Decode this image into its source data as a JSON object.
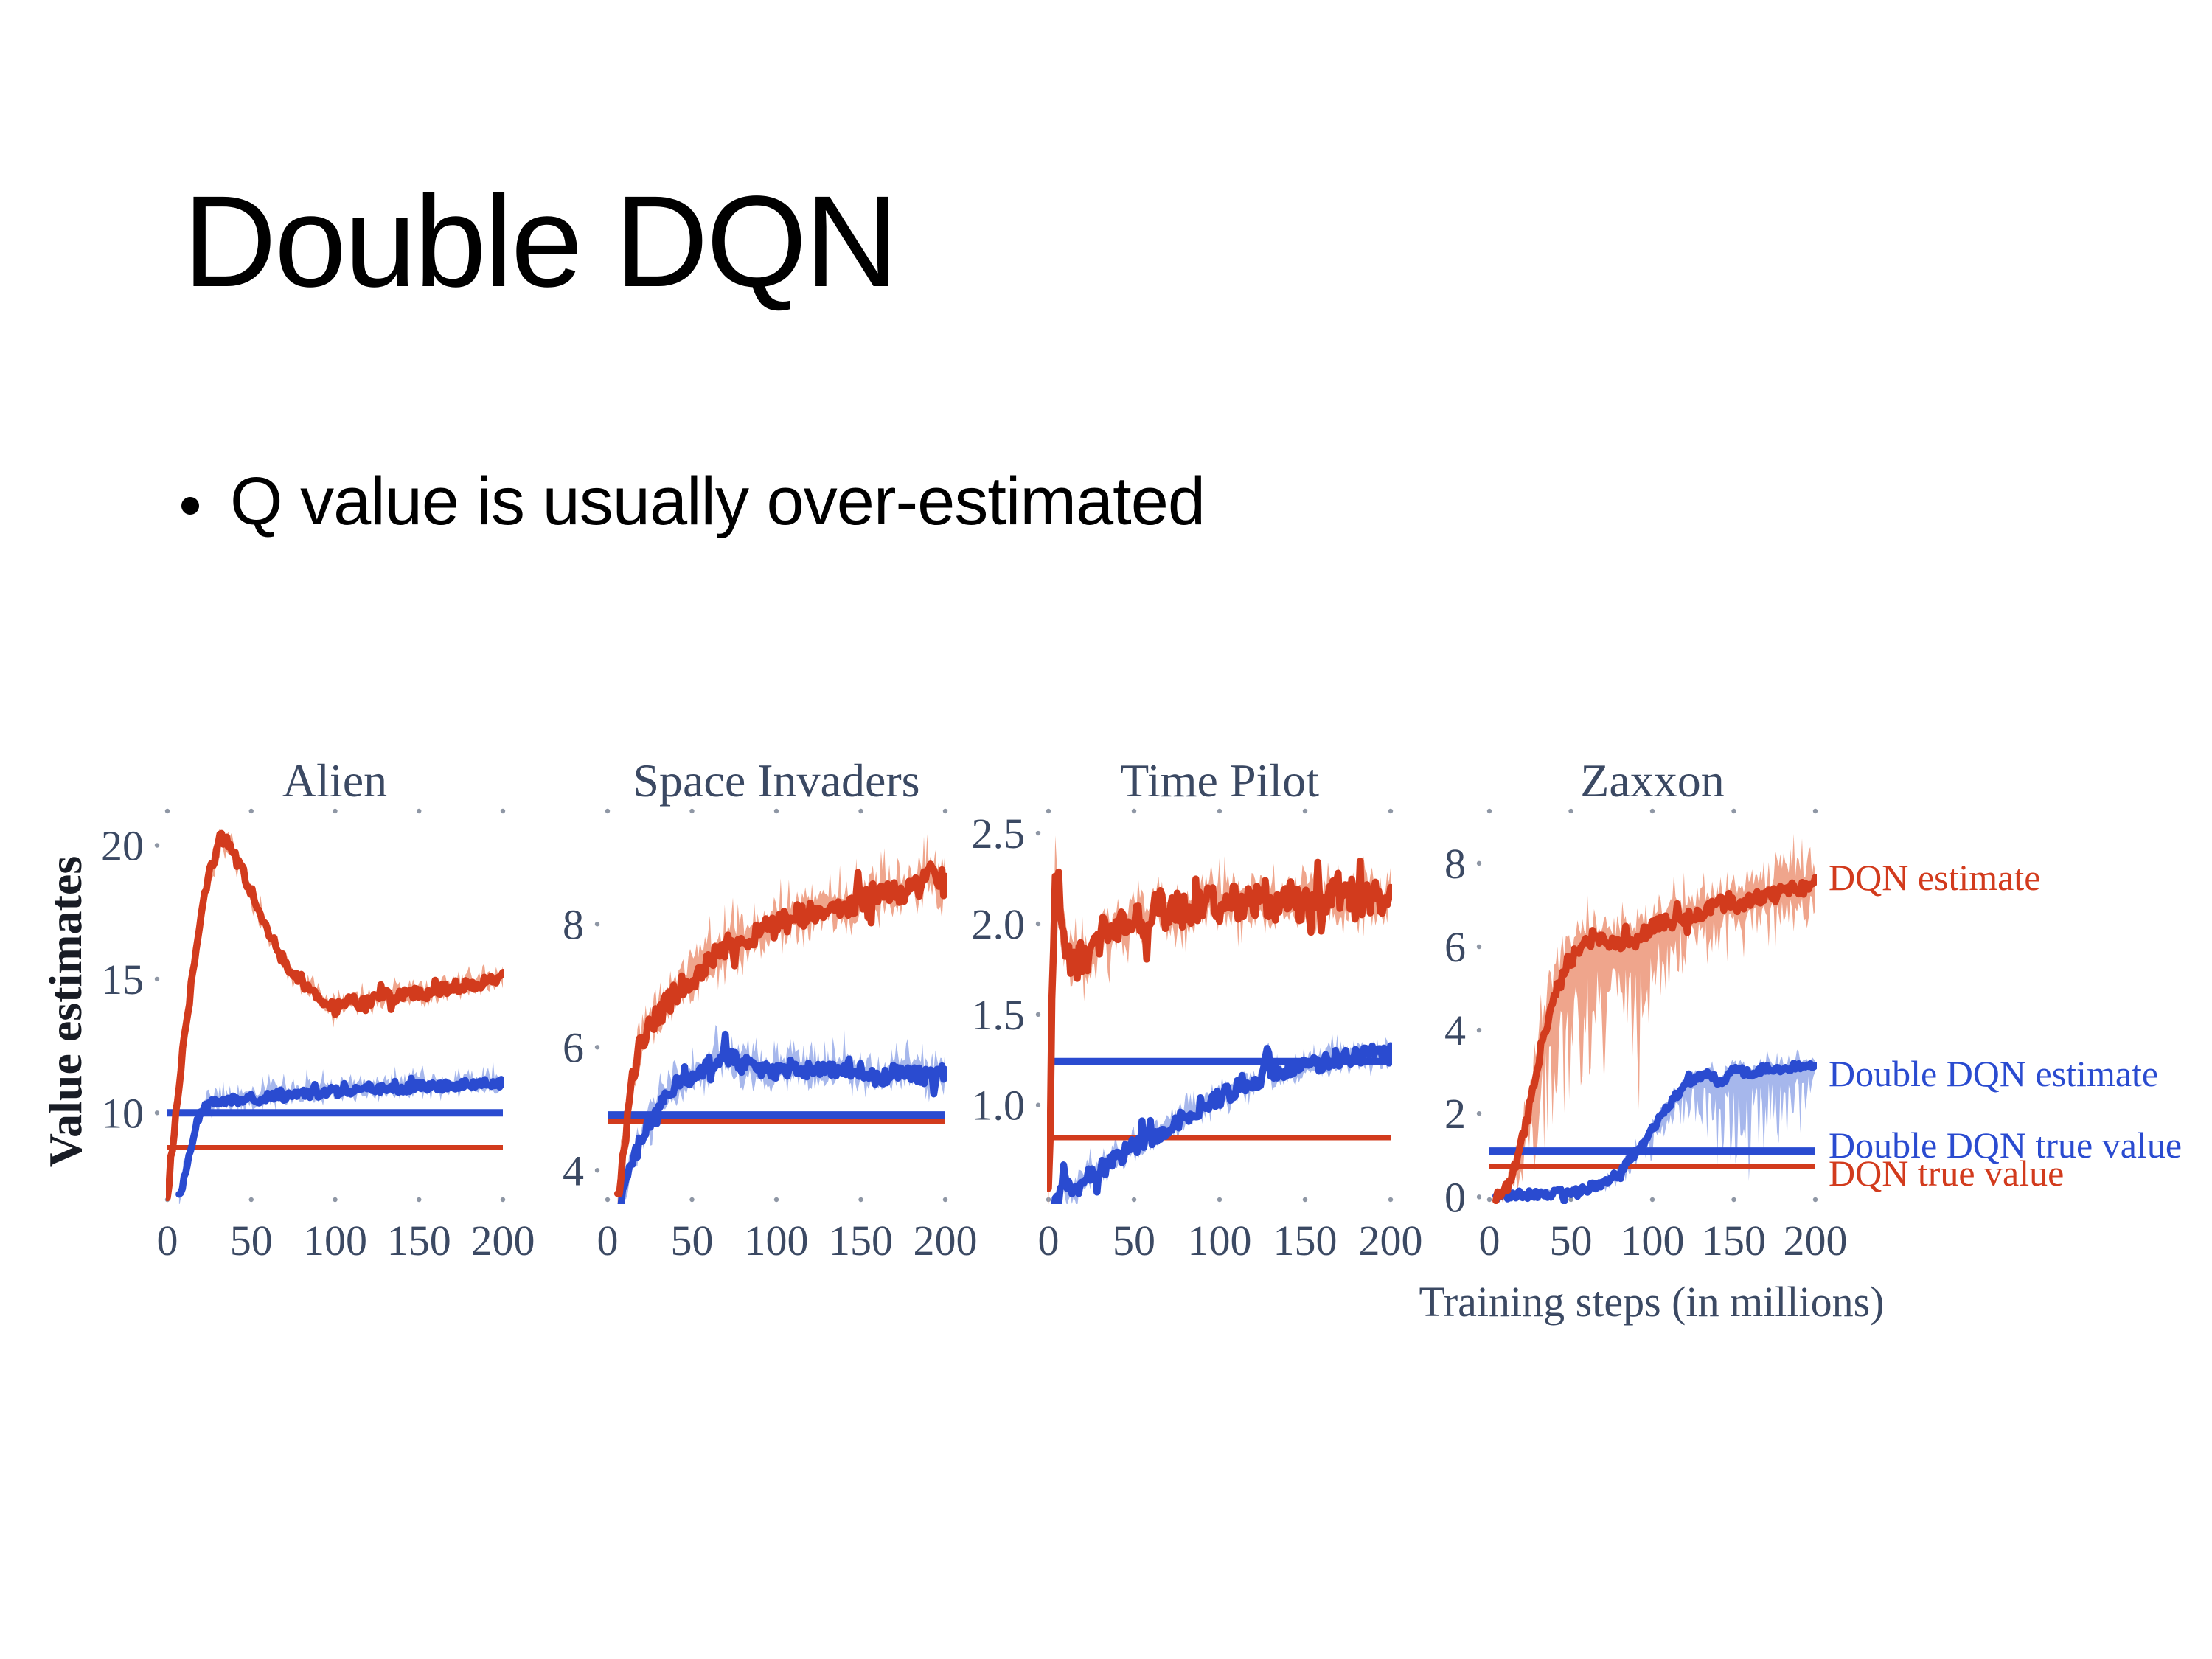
{
  "slide": {
    "title": "Double DQN",
    "bullet": "Q value is usually over-estimated"
  },
  "figure": {
    "y_axis_label": "Value estimates",
    "x_axis_label": "Training steps (in millions)",
    "colors": {
      "dqn": "#d23b1d",
      "dqn_band": "#efa58c",
      "ddqn": "#2a4bd0",
      "ddqn_band": "#a6b7ec",
      "axis_text": "#3b4963",
      "tick_dot": "#8f97a5",
      "ylabel_text": "#181c25"
    },
    "legend": [
      {
        "label": "DQN estimate",
        "color_key": "dqn"
      },
      {
        "label": "Double DQN estimate",
        "color_key": "ddqn"
      },
      {
        "label": "Double DQN true value",
        "color_key": "ddqn"
      },
      {
        "label": "DQN true value",
        "color_key": "dqn"
      }
    ]
  },
  "chart_data": [
    {
      "type": "line",
      "title": "Alien",
      "ylabel": "Value estimates",
      "xlim": [
        0,
        200
      ],
      "ylim": [
        6.7,
        21.2
      ],
      "yticks": [
        10,
        15,
        20
      ],
      "ytick_labels": [
        "10",
        "15",
        "20"
      ],
      "xticks": [
        0,
        50,
        100,
        150,
        200
      ],
      "xtick_labels": [
        "0",
        "50",
        "100",
        "150",
        "200"
      ],
      "series": [
        {
          "name": "DQN estimate",
          "kind": "curve",
          "color_key": "dqn",
          "band_key": "dqn_band",
          "noise": 0.22,
          "band_up": 0.55,
          "band_low": 0.5,
          "x": [
            0,
            3,
            6,
            9,
            12,
            15,
            18,
            21,
            25,
            28,
            32,
            36,
            40,
            45,
            50,
            55,
            60,
            65,
            70,
            75,
            80,
            85,
            90,
            95,
            100,
            105,
            110,
            115,
            120,
            125,
            130,
            135,
            140,
            145,
            150,
            155,
            160,
            165,
            170,
            175,
            180,
            185,
            190,
            195,
            200
          ],
          "y": [
            6.8,
            8.5,
            10.5,
            12.2,
            13.6,
            15.2,
            16.6,
            17.8,
            18.9,
            19.5,
            20.3,
            20.1,
            19.6,
            19.0,
            18.3,
            17.4,
            16.7,
            16.2,
            15.6,
            15.2,
            14.9,
            14.6,
            14.4,
            14.1,
            13.9,
            14.1,
            14.2,
            14.1,
            14.2,
            14.3,
            14.4,
            14.3,
            14.4,
            14.5,
            14.5,
            14.4,
            14.6,
            14.6,
            14.7,
            14.7,
            14.8,
            14.8,
            14.9,
            15.0,
            15.1
          ]
        },
        {
          "name": "Double DQN estimate",
          "kind": "curve",
          "color_key": "ddqn",
          "band_key": "ddqn_band",
          "noise": 0.16,
          "band_up": 0.6,
          "band_low": 0.4,
          "x": [
            7,
            10,
            13,
            16,
            19,
            22,
            25,
            30,
            35,
            40,
            45,
            50,
            55,
            60,
            65,
            70,
            75,
            80,
            85,
            90,
            95,
            100,
            110,
            120,
            130,
            140,
            150,
            160,
            170,
            180,
            190,
            200
          ],
          "y": [
            6.8,
            7.6,
            8.4,
            9.2,
            9.8,
            10.2,
            10.3,
            10.4,
            10.4,
            10.5,
            10.5,
            10.6,
            10.5,
            10.6,
            10.7,
            10.6,
            10.7,
            10.7,
            10.8,
            10.7,
            10.8,
            10.8,
            10.8,
            10.9,
            10.9,
            10.9,
            11.0,
            11.0,
            11.0,
            11.1,
            11.1,
            11.1
          ]
        },
        {
          "name": "DQN true value",
          "kind": "hline",
          "color_key": "dqn",
          "value": 8.7
        },
        {
          "name": "Double DQN true value",
          "kind": "hline",
          "color_key": "ddqn",
          "value": 10.0
        }
      ]
    },
    {
      "type": "line",
      "title": "Space Invaders",
      "xlim": [
        0,
        200
      ],
      "ylim": [
        3.5,
        9.8
      ],
      "yticks": [
        4,
        6,
        8
      ],
      "ytick_labels": [
        "4",
        "6",
        "8"
      ],
      "xticks": [
        0,
        50,
        100,
        150,
        200
      ],
      "xtick_labels": [
        "0",
        "50",
        "100",
        "150",
        "200"
      ],
      "series": [
        {
          "name": "DQN estimate",
          "kind": "curve",
          "color_key": "dqn",
          "band_key": "dqn_band",
          "noise": 0.2,
          "band_up": 0.5,
          "band_low": 0.4,
          "x": [
            6,
            9,
            12,
            15,
            18,
            22,
            26,
            30,
            35,
            40,
            45,
            50,
            55,
            60,
            65,
            70,
            75,
            80,
            85,
            90,
            95,
            100,
            110,
            120,
            130,
            140,
            150,
            160,
            170,
            180,
            190,
            200
          ],
          "y": [
            3.5,
            4.2,
            4.9,
            5.5,
            5.9,
            6.2,
            6.4,
            6.5,
            6.7,
            6.9,
            7.0,
            7.1,
            7.3,
            7.4,
            7.5,
            7.6,
            7.7,
            7.7,
            7.8,
            7.9,
            7.9,
            8.0,
            8.1,
            8.2,
            8.3,
            8.3,
            8.4,
            8.5,
            8.5,
            8.6,
            8.8,
            8.6
          ]
        },
        {
          "name": "Double DQN estimate",
          "kind": "curve",
          "color_key": "ddqn",
          "band_key": "ddqn_band",
          "noise": 0.14,
          "band_up": 0.4,
          "band_low": 0.3,
          "x": [
            8,
            11,
            14,
            17,
            20,
            24,
            28,
            32,
            36,
            40,
            45,
            50,
            55,
            60,
            65,
            70,
            75,
            80,
            85,
            90,
            95,
            100,
            110,
            120,
            130,
            140,
            150,
            160,
            170,
            180,
            190,
            200
          ],
          "y": [
            3.5,
            3.8,
            4.1,
            4.3,
            4.5,
            4.7,
            4.9,
            5.1,
            5.3,
            5.4,
            5.4,
            5.5,
            5.6,
            5.7,
            5.8,
            5.9,
            5.8,
            5.7,
            5.7,
            5.6,
            5.6,
            5.6,
            5.7,
            5.6,
            5.6,
            5.7,
            5.6,
            5.5,
            5.6,
            5.6,
            5.5,
            5.6
          ]
        },
        {
          "name": "DQN true value",
          "kind": "hline",
          "color_key": "dqn",
          "value": 4.8
        },
        {
          "name": "Double DQN true value",
          "kind": "hline",
          "color_key": "ddqn",
          "value": 4.9
        }
      ]
    },
    {
      "type": "line",
      "title": "Time Pilot",
      "xlim": [
        0,
        200
      ],
      "ylim": [
        0.47,
        2.61
      ],
      "yticks": [
        1.0,
        1.5,
        2.0,
        2.5
      ],
      "ytick_labels": [
        "1.0",
        "1.5",
        "2.0",
        "2.5"
      ],
      "xticks": [
        0,
        50,
        100,
        150,
        200
      ],
      "xtick_labels": [
        "0",
        "50",
        "100",
        "150",
        "200"
      ],
      "series": [
        {
          "name": "DQN estimate",
          "kind": "curve",
          "color_key": "dqn",
          "band_key": "dqn_band",
          "noise": 0.1,
          "band_up": 0.18,
          "band_low": 0.16,
          "x": [
            0,
            2,
            4,
            6,
            8,
            11,
            14,
            17,
            20,
            24,
            28,
            32,
            36,
            40,
            45,
            50,
            55,
            60,
            65,
            70,
            75,
            80,
            85,
            90,
            95,
            100,
            105,
            110,
            115,
            120,
            125,
            130,
            135,
            140,
            145,
            150,
            155,
            160,
            165,
            170,
            175,
            180,
            185,
            190,
            195,
            200
          ],
          "y": [
            0.5,
            1.5,
            2.3,
            2.2,
            2.0,
            1.85,
            1.8,
            1.78,
            1.82,
            1.78,
            1.85,
            1.95,
            1.9,
            2.0,
            1.98,
            2.05,
            2.0,
            2.05,
            2.1,
            2.05,
            2.1,
            2.05,
            2.1,
            2.1,
            2.15,
            2.1,
            2.15,
            2.1,
            2.12,
            2.1,
            2.15,
            2.12,
            2.1,
            2.15,
            2.1,
            2.12,
            2.15,
            2.1,
            2.15,
            2.12,
            2.15,
            2.1,
            2.15,
            2.15,
            2.1,
            2.2
          ]
        },
        {
          "name": "Double DQN estimate",
          "kind": "curve",
          "color_key": "ddqn",
          "band_key": "ddqn_band",
          "noise": 0.05,
          "band_up": 0.1,
          "band_low": 0.08,
          "x": [
            3,
            6,
            9,
            12,
            15,
            18,
            22,
            26,
            30,
            35,
            40,
            45,
            50,
            55,
            60,
            65,
            70,
            75,
            80,
            85,
            90,
            95,
            100,
            105,
            110,
            115,
            120,
            125,
            128,
            130,
            135,
            140,
            145,
            150,
            155,
            160,
            165,
            170,
            175,
            180,
            185,
            190,
            195,
            200
          ],
          "y": [
            0.43,
            0.5,
            0.57,
            0.54,
            0.52,
            0.56,
            0.6,
            0.62,
            0.64,
            0.67,
            0.71,
            0.74,
            0.77,
            0.8,
            0.82,
            0.85,
            0.89,
            0.91,
            0.94,
            0.97,
            1.0,
            1.02,
            1.04,
            1.06,
            1.09,
            1.11,
            1.12,
            1.14,
            1.32,
            1.16,
            1.17,
            1.19,
            1.2,
            1.21,
            1.22,
            1.23,
            1.25,
            1.26,
            1.26,
            1.27,
            1.27,
            1.28,
            1.27,
            1.28
          ]
        },
        {
          "name": "DQN true value",
          "kind": "hline",
          "color_key": "dqn",
          "value": 0.82
        },
        {
          "name": "Double DQN true value",
          "kind": "hline",
          "color_key": "ddqn",
          "value": 1.24
        }
      ]
    },
    {
      "type": "line",
      "title": "Zaxxon",
      "xlabel": "Training steps (in millions)",
      "xlim": [
        0,
        200
      ],
      "ylim": [
        -0.1,
        9.2
      ],
      "yticks": [
        0,
        2,
        4,
        6,
        8
      ],
      "ytick_labels": [
        "0",
        "2",
        "4",
        "6",
        "8"
      ],
      "xticks": [
        0,
        50,
        100,
        150,
        200
      ],
      "xtick_labels": [
        "0",
        "50",
        "100",
        "150",
        "200"
      ],
      "series": [
        {
          "name": "DQN estimate",
          "kind": "curve",
          "color_key": "dqn",
          "band_key": "dqn_band",
          "noise": 0.18,
          "band_up": {
            "x": [
              0,
              20,
              30,
              40,
              60,
              80,
              100,
              120,
              140,
              160,
              180,
              200
            ],
            "v": [
              0.15,
              0.5,
              0.9,
              0.9,
              0.8,
              0.7,
              0.7,
              0.8,
              0.8,
              0.9,
              1.0,
              1.1
            ]
          },
          "band_low": {
            "x": [
              0,
              15,
              25,
              35,
              45,
              60,
              75,
              90,
              100,
              110,
              120,
              140,
              160,
              180,
              200
            ],
            "v": [
              0.15,
              0.4,
              1.5,
              3.0,
              3.6,
              3.6,
              2.8,
              3.0,
              2.0,
              1.5,
              1.2,
              1.0,
              0.9,
              0.9,
              1.0
            ]
          },
          "x": [
            4,
            8,
            12,
            16,
            20,
            24,
            28,
            32,
            36,
            40,
            44,
            48,
            52,
            56,
            60,
            65,
            70,
            75,
            80,
            85,
            90,
            95,
            100,
            105,
            110,
            115,
            120,
            125,
            130,
            135,
            140,
            145,
            150,
            155,
            160,
            165,
            170,
            175,
            180,
            185,
            190,
            195,
            200
          ],
          "y": [
            0.0,
            0.1,
            0.3,
            0.7,
            1.3,
            2.1,
            2.9,
            3.6,
            4.3,
            4.8,
            5.2,
            5.6,
            5.8,
            6.0,
            6.1,
            6.15,
            6.1,
            6.05,
            6.1,
            6.2,
            6.2,
            6.3,
            6.5,
            6.55,
            6.6,
            6.65,
            6.7,
            6.75,
            6.8,
            6.9,
            7.0,
            7.0,
            7.0,
            7.05,
            7.1,
            7.15,
            7.2,
            7.25,
            7.3,
            7.35,
            7.4,
            7.45,
            7.5
          ]
        },
        {
          "name": "Double DQN estimate",
          "kind": "curve",
          "color_key": "ddqn",
          "band_key": "ddqn_band",
          "noise": 0.1,
          "band_up": {
            "x": [
              0,
              60,
              80,
              100,
              120,
              140,
              160,
              180,
              200
            ],
            "v": [
              0.06,
              0.1,
              0.2,
              0.3,
              0.3,
              0.3,
              0.3,
              0.3,
              0.25
            ]
          },
          "band_low": {
            "x": [
              0,
              60,
              80,
              100,
              110,
              120,
              130,
              140,
              150,
              160,
              170,
              180,
              190,
              200
            ],
            "v": [
              0.05,
              0.08,
              0.3,
              0.5,
              0.7,
              0.9,
              1.3,
              1.6,
              1.6,
              1.8,
              1.7,
              1.8,
              1.4,
              0.7
            ]
          },
          "x": [
            4,
            10,
            16,
            22,
            28,
            34,
            40,
            46,
            52,
            58,
            64,
            70,
            76,
            82,
            88,
            94,
            100,
            106,
            112,
            118,
            124,
            130,
            136,
            142,
            148,
            154,
            160,
            166,
            172,
            178,
            184,
            190,
            195,
            200
          ],
          "y": [
            0.05,
            0.05,
            0.06,
            0.06,
            0.07,
            0.08,
            0.1,
            0.12,
            0.15,
            0.18,
            0.25,
            0.35,
            0.5,
            0.7,
            0.95,
            1.25,
            1.6,
            1.95,
            2.3,
            2.6,
            2.8,
            2.9,
            2.95,
            2.7,
            3.0,
            3.05,
            2.95,
            3.05,
            3.1,
            3.05,
            3.1,
            3.15,
            3.1,
            3.2
          ]
        },
        {
          "name": "DQN true value",
          "kind": "hline",
          "color_key": "dqn",
          "value": 0.73
        },
        {
          "name": "Double DQN true value",
          "kind": "hline",
          "color_key": "ddqn",
          "value": 1.1
        }
      ]
    }
  ]
}
